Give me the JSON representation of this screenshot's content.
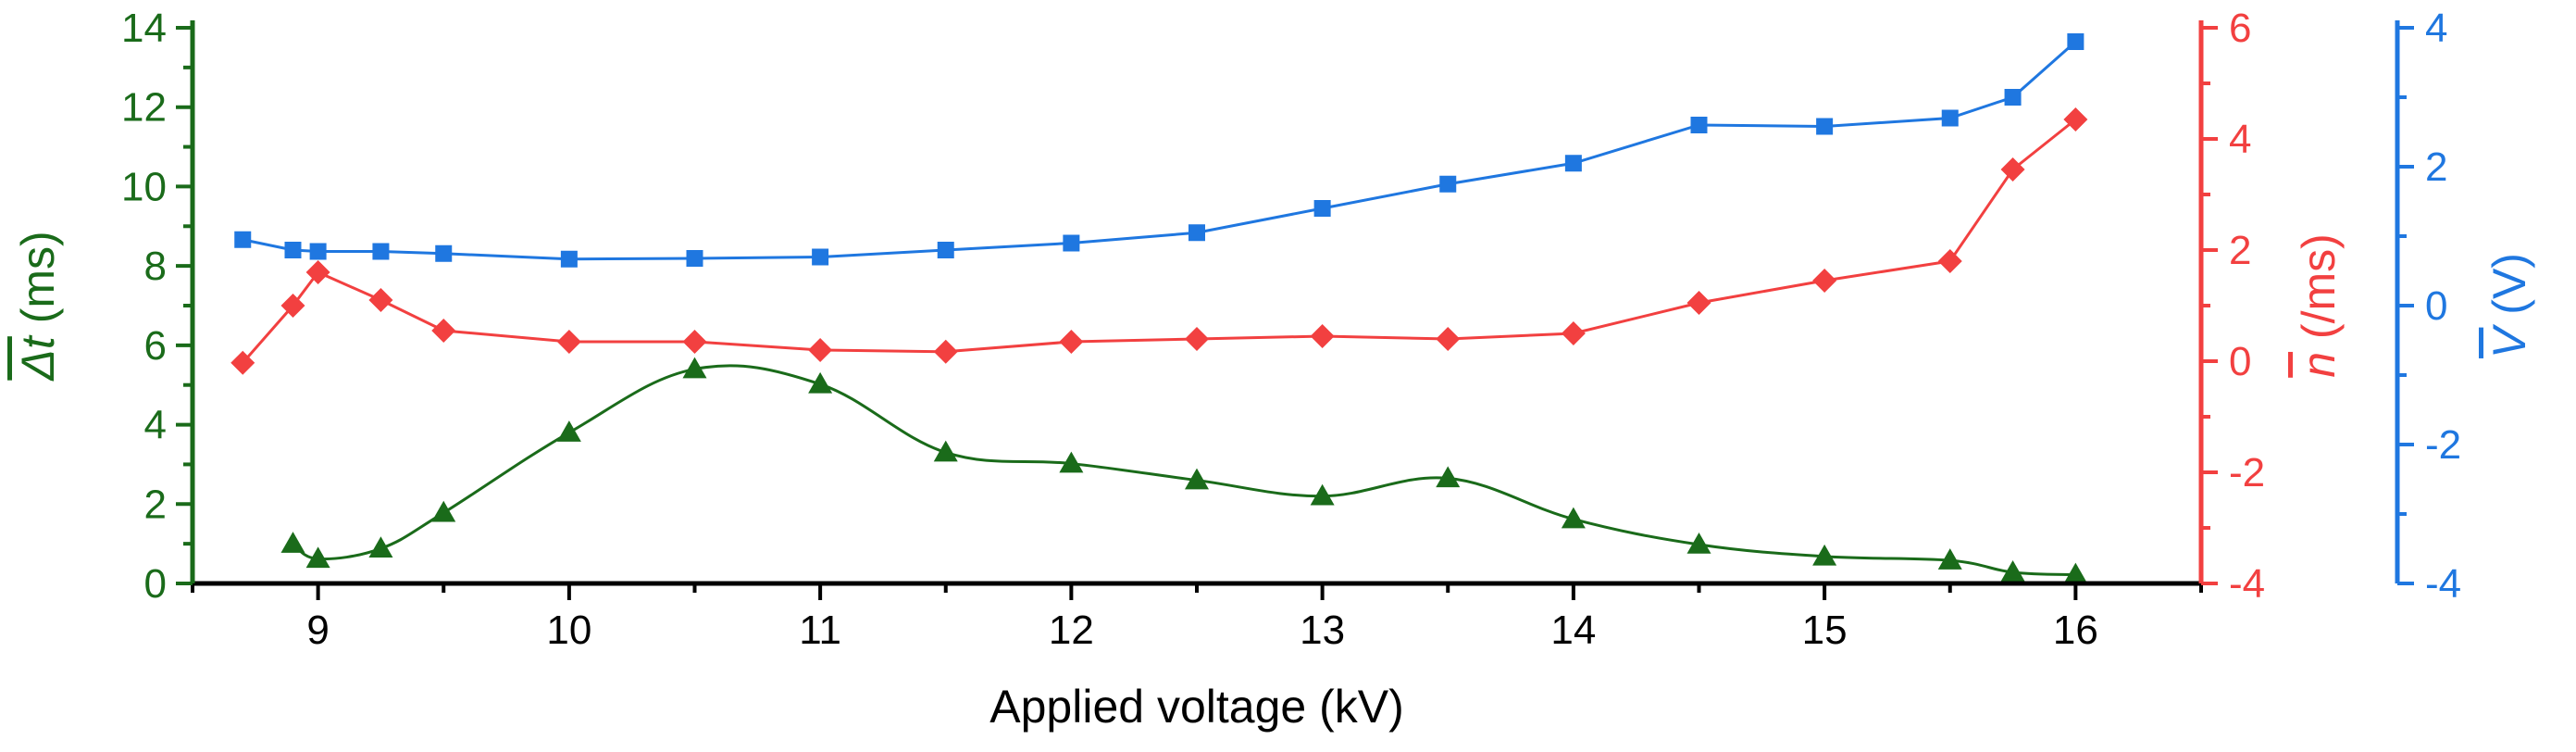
{
  "chart_data": {
    "type": "line",
    "xlabel": "Applied voltage (kV)",
    "xlim": [
      8.5,
      16.5
    ],
    "x_ticks": [
      "9",
      "10",
      "11",
      "12",
      "13",
      "14",
      "15",
      "16"
    ],
    "grid": false,
    "axes": {
      "left": {
        "label_symbol": "Δt",
        "label_unit": " (ms)",
        "color": "#1a6b1a",
        "ylim": [
          0,
          14
        ],
        "ticks": [
          "0",
          "2",
          "4",
          "6",
          "8",
          "10",
          "12",
          "14"
        ]
      },
      "right1": {
        "label_symbol": "n",
        "label_unit": " (/ms)",
        "color": "#f24040",
        "ylim": [
          -4,
          6
        ],
        "ticks": [
          "-4",
          "-2",
          "0",
          "2",
          "4",
          "6"
        ]
      },
      "right2": {
        "label_symbol": "V",
        "label_unit": " (V)",
        "color": "#1f77e0",
        "ylim": [
          -4,
          4
        ],
        "ticks": [
          "-4",
          "-2",
          "0",
          "2",
          "4"
        ]
      }
    },
    "series": [
      {
        "name": "Mean Δt",
        "axis": "left",
        "marker": "triangle",
        "color": "#1a6b1a",
        "smooth": true,
        "x": [
          8.9,
          9.0,
          9.25,
          9.5,
          10.0,
          10.5,
          11.0,
          11.5,
          12.0,
          12.5,
          13.0,
          13.5,
          14.0,
          14.5,
          15.0,
          15.5,
          15.75,
          16.0
        ],
        "values": [
          1.0,
          0.62,
          0.88,
          1.78,
          3.8,
          5.4,
          5.02,
          3.3,
          3.02,
          2.6,
          2.2,
          2.65,
          1.62,
          0.98,
          0.68,
          0.58,
          0.28,
          0.22
        ]
      },
      {
        "name": "Mean n",
        "axis": "right1",
        "marker": "diamond",
        "color": "#f24040",
        "smooth": false,
        "x": [
          8.7,
          8.9,
          9.0,
          9.25,
          9.5,
          10.0,
          10.5,
          11.0,
          11.5,
          12.0,
          12.5,
          13.0,
          13.5,
          14.0,
          14.5,
          15.0,
          15.5,
          15.75,
          16.0
        ],
        "values": [
          -0.03,
          1.0,
          1.6,
          1.1,
          0.55,
          0.35,
          0.35,
          0.2,
          0.17,
          0.35,
          0.4,
          0.45,
          0.4,
          0.5,
          1.05,
          1.45,
          1.8,
          3.45,
          4.35
        ]
      },
      {
        "name": "Mean V",
        "axis": "right2",
        "marker": "square",
        "color": "#1f77e0",
        "smooth": false,
        "x": [
          8.7,
          8.9,
          9.0,
          9.25,
          9.5,
          10.0,
          10.5,
          11.0,
          11.5,
          12.0,
          12.5,
          13.0,
          13.5,
          14.0,
          14.5,
          15.0,
          15.5,
          15.75,
          16.0
        ],
        "values": [
          0.95,
          0.8,
          0.78,
          0.78,
          0.75,
          0.67,
          0.68,
          0.7,
          0.8,
          0.9,
          1.05,
          1.4,
          1.75,
          2.05,
          2.6,
          2.58,
          2.7,
          3.0,
          3.8
        ]
      }
    ]
  }
}
